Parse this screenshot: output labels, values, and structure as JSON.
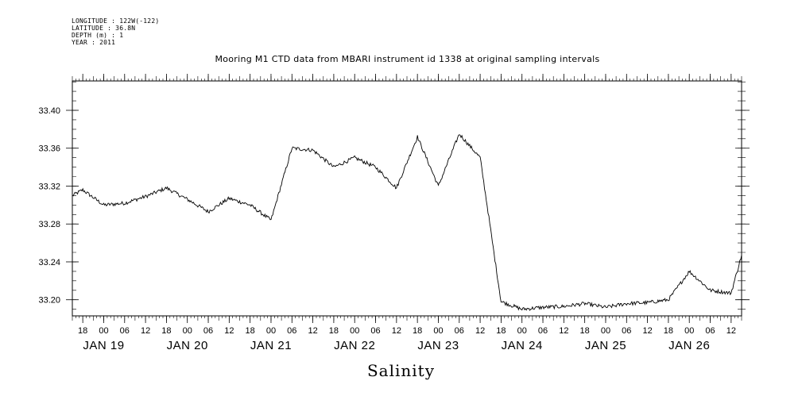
{
  "meta": {
    "longitude": "LONGITUDE : 122W(-122)",
    "latitude": "LATITUDE : 36.8N",
    "depth": "DEPTH (m) : 1",
    "year": "YEAR : 2011"
  },
  "chart_data": {
    "type": "line",
    "title": "Mooring M1 CTD data from MBARI instrument id 1338 at original sampling intervals",
    "xlabel": "Salinity",
    "ylabel": "",
    "ylim": [
      33.183,
      33.431
    ],
    "xlim_hours_label": "Jan 18 15:00 to Jan 26 15:00",
    "y_ticks": [
      "33.20",
      "33.24",
      "33.28",
      "33.32",
      "33.36",
      "33.40"
    ],
    "x_hour_ticks": [
      "18",
      "00",
      "06",
      "12",
      "18",
      "00",
      "06",
      "12",
      "18",
      "00",
      "06",
      "12",
      "18",
      "00",
      "06",
      "12",
      "18",
      "00",
      "06",
      "12",
      "18",
      "00",
      "06",
      "12",
      "18",
      "00",
      "06",
      "12",
      "18",
      "00",
      "06",
      "12"
    ],
    "x_day_labels": [
      "JAN 19",
      "JAN 20",
      "JAN 21",
      "JAN 22",
      "JAN 23",
      "JAN 24",
      "JAN 25",
      "JAN 26"
    ],
    "series": [
      {
        "x": [
          "2011-01-18T15:00",
          "2011-01-18T18:00",
          "2011-01-19T00:00",
          "2011-01-19T06:00",
          "2011-01-19T12:00",
          "2011-01-19T18:00",
          "2011-01-20T00:00",
          "2011-01-20T06:00",
          "2011-01-20T12:00",
          "2011-01-20T18:00",
          "2011-01-21T00:00",
          "2011-01-21T06:00",
          "2011-01-21T12:00",
          "2011-01-21T18:00",
          "2011-01-22T00:00",
          "2011-01-22T06:00",
          "2011-01-22T12:00",
          "2011-01-22T18:00",
          "2011-01-23T00:00",
          "2011-01-23T06:00",
          "2011-01-23T12:00",
          "2011-01-23T18:00",
          "2011-01-24T00:00",
          "2011-01-24T06:00",
          "2011-01-24T12:00",
          "2011-01-24T18:00",
          "2011-01-25T00:00",
          "2011-01-25T06:00",
          "2011-01-25T12:00",
          "2011-01-25T18:00",
          "2011-01-26T00:00",
          "2011-01-26T06:00",
          "2011-01-26T12:00",
          "2011-01-26T15:00"
        ],
        "y": [
          33.31,
          33.316,
          33.3,
          33.302,
          33.309,
          33.318,
          33.306,
          33.293,
          33.307,
          33.3,
          33.284,
          33.36,
          33.358,
          33.34,
          33.35,
          33.34,
          33.318,
          33.372,
          33.32,
          33.375,
          33.35,
          33.198,
          33.19,
          33.192,
          33.193,
          33.196,
          33.192,
          33.196,
          33.197,
          33.2,
          33.23,
          33.21,
          33.207,
          33.247
        ]
      }
    ],
    "grid": false,
    "legend": "none"
  }
}
